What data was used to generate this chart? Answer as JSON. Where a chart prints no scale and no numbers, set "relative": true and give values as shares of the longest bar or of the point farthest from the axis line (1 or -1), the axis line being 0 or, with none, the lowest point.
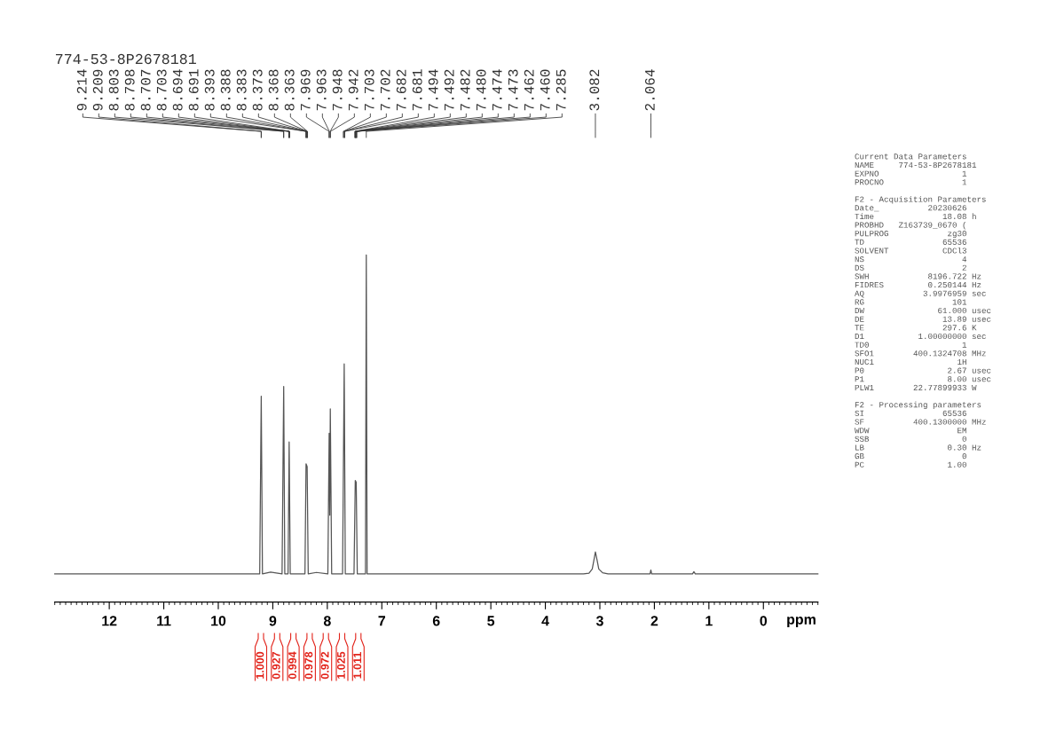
{
  "chart_data": [
    {
      "type": "line",
      "title": "774-53-8P2678181",
      "xlabel": "ppm",
      "relative": true,
      "x": [
        13.0,
        9.3,
        9.24,
        9.212,
        9.19,
        9.04,
        8.83,
        8.8,
        8.78,
        8.72,
        8.7,
        8.68,
        8.41,
        8.39,
        8.37,
        8.35,
        8.2,
        7.99,
        7.966,
        7.955,
        7.945,
        7.92,
        7.72,
        7.69,
        7.67,
        7.51,
        7.487,
        7.47,
        7.45,
        7.3,
        7.285,
        7.27,
        3.3,
        3.2,
        3.14,
        3.11,
        3.082,
        3.05,
        3.02,
        2.95,
        2.85,
        2.08,
        2.064,
        2.05,
        1.3,
        1.275,
        1.25,
        -1.0
      ],
      "series": [
        {
          "color": "#555555",
          "values": [
            0.081,
            0.081,
            0.081,
            0.593,
            0.081,
            0.086,
            0.081,
            0.621,
            0.081,
            0.081,
            0.461,
            0.081,
            0.081,
            0.398,
            0.39,
            0.081,
            0.085,
            0.081,
            0.486,
            0.25,
            0.556,
            0.081,
            0.081,
            0.686,
            0.081,
            0.081,
            0.35,
            0.345,
            0.081,
            0.081,
            1.0,
            0.081,
            0.081,
            0.083,
            0.095,
            0.12,
            0.144,
            0.12,
            0.095,
            0.084,
            0.081,
            0.081,
            0.092,
            0.081,
            0.081,
            0.087,
            0.081,
            0.081
          ]
        }
      ],
      "xlim": [
        13,
        -1
      ],
      "xticks": [
        {
          "value": 13,
          "label": null
        },
        {
          "value": 12.9,
          "label": null
        },
        {
          "value": 12.8,
          "label": null
        },
        {
          "value": 12.7,
          "label": null
        },
        {
          "value": 12.6,
          "label": null
        },
        {
          "value": 12.5,
          "label": null
        },
        {
          "value": 12.4,
          "label": null
        },
        {
          "value": 12.3,
          "label": null
        },
        {
          "value": 12.2,
          "label": null
        },
        {
          "value": 12.1,
          "label": null
        },
        12,
        {
          "value": 11.9,
          "label": null
        },
        {
          "value": 11.8,
          "label": null
        },
        {
          "value": 11.7,
          "label": null
        },
        {
          "value": 11.6,
          "label": null
        },
        {
          "value": 11.5,
          "label": null
        },
        {
          "value": 11.4,
          "label": null
        },
        {
          "value": 11.3,
          "label": null
        },
        {
          "value": 11.2,
          "label": null
        },
        {
          "value": 11.1,
          "label": null
        },
        11,
        {
          "value": 10.9,
          "label": null
        },
        {
          "value": 10.8,
          "label": null
        },
        {
          "value": 10.7,
          "label": null
        },
        {
          "value": 10.6,
          "label": null
        },
        {
          "value": 10.5,
          "label": null
        },
        {
          "value": 10.4,
          "label": null
        },
        {
          "value": 10.3,
          "label": null
        },
        {
          "value": 10.2,
          "label": null
        },
        {
          "value": 10.1,
          "label": null
        },
        10,
        {
          "value": 9.9,
          "label": null
        },
        {
          "value": 9.8,
          "label": null
        },
        {
          "value": 9.7,
          "label": null
        },
        {
          "value": 9.6,
          "label": null
        },
        {
          "value": 9.5,
          "label": null
        },
        {
          "value": 9.4,
          "label": null
        },
        {
          "value": 9.3,
          "label": null
        },
        {
          "value": 9.2,
          "label": null
        },
        {
          "value": 9.1,
          "label": null
        },
        9,
        {
          "value": 8.9,
          "label": null
        },
        {
          "value": 8.8,
          "label": null
        },
        {
          "value": 8.7,
          "label": null
        },
        {
          "value": 8.6,
          "label": null
        },
        {
          "value": 8.5,
          "label": null
        },
        {
          "value": 8.4,
          "label": null
        },
        {
          "value": 8.3,
          "label": null
        },
        {
          "value": 8.2,
          "label": null
        },
        {
          "value": 8.1,
          "label": null
        },
        8,
        {
          "value": 7.9,
          "label": null
        },
        {
          "value": 7.8,
          "label": null
        },
        {
          "value": 7.7,
          "label": null
        },
        {
          "value": 7.6,
          "label": null
        },
        {
          "value": 7.5,
          "label": null
        },
        {
          "value": 7.4,
          "label": null
        },
        {
          "value": 7.3,
          "label": null
        },
        {
          "value": 7.2,
          "label": null
        },
        {
          "value": 7.1,
          "label": null
        },
        7,
        {
          "value": 6.9,
          "label": null
        },
        {
          "value": 6.8,
          "label": null
        },
        {
          "value": 6.7,
          "label": null
        },
        {
          "value": 6.6,
          "label": null
        },
        {
          "value": 6.5,
          "label": null
        },
        {
          "value": 6.4,
          "label": null
        },
        {
          "value": 6.3,
          "label": null
        },
        {
          "value": 6.2,
          "label": null
        },
        {
          "value": 6.1,
          "label": null
        },
        6,
        {
          "value": 5.9,
          "label": null
        },
        {
          "value": 5.8,
          "label": null
        },
        {
          "value": 5.7,
          "label": null
        },
        {
          "value": 5.6,
          "label": null
        },
        {
          "value": 5.5,
          "label": null
        },
        {
          "value": 5.4,
          "label": null
        },
        {
          "value": 5.3,
          "label": null
        },
        {
          "value": 5.2,
          "label": null
        },
        {
          "value": 5.1,
          "label": null
        },
        5,
        {
          "value": 4.9,
          "label": null
        },
        {
          "value": 4.8,
          "label": null
        },
        {
          "value": 4.7,
          "label": null
        },
        {
          "value": 4.6,
          "label": null
        },
        {
          "value": 4.5,
          "label": null
        },
        {
          "value": 4.4,
          "label": null
        },
        {
          "value": 4.3,
          "label": null
        },
        {
          "value": 4.2,
          "label": null
        },
        {
          "value": 4.1,
          "label": null
        },
        4,
        {
          "value": 3.9,
          "label": null
        },
        {
          "value": 3.8,
          "label": null
        },
        {
          "value": 3.7,
          "label": null
        },
        {
          "value": 3.6,
          "label": null
        },
        {
          "value": 3.5,
          "label": null
        },
        {
          "value": 3.4,
          "label": null
        },
        {
          "value": 3.3,
          "label": null
        },
        {
          "value": 3.2,
          "label": null
        },
        {
          "value": 3.1,
          "label": null
        },
        3,
        {
          "value": 2.9,
          "label": null
        },
        {
          "value": 2.8,
          "label": null
        },
        {
          "value": 2.7,
          "label": null
        },
        {
          "value": 2.6,
          "label": null
        },
        {
          "value": 2.5,
          "label": null
        },
        {
          "value": 2.4,
          "label": null
        },
        {
          "value": 2.3,
          "label": null
        },
        {
          "value": 2.2,
          "label": null
        },
        {
          "value": 2.1,
          "label": null
        },
        2,
        {
          "value": 1.9,
          "label": null
        },
        {
          "value": 1.8,
          "label": null
        },
        {
          "value": 1.7,
          "label": null
        },
        {
          "value": 1.6,
          "label": null
        },
        {
          "value": 1.5,
          "label": null
        },
        {
          "value": 1.4,
          "label": null
        },
        {
          "value": 1.3,
          "label": null
        },
        {
          "value": 1.2,
          "label": null
        },
        {
          "value": 1.1,
          "label": null
        },
        1,
        {
          "value": 0.9,
          "label": null
        },
        {
          "value": 0.8,
          "label": null
        },
        {
          "value": 0.7,
          "label": null
        },
        {
          "value": 0.6,
          "label": null
        },
        {
          "value": 0.5,
          "label": null
        },
        {
          "value": 0.4,
          "label": null
        },
        {
          "value": 0.3,
          "label": null
        },
        {
          "value": 0.2,
          "label": null
        },
        {
          "value": 0.1,
          "label": null
        },
        0,
        {
          "value": -0.1,
          "label": null
        },
        {
          "value": -0.2,
          "label": null
        },
        {
          "value": -0.3,
          "label": null
        },
        {
          "value": -0.4,
          "label": null
        },
        {
          "value": -0.5,
          "label": null
        },
        {
          "value": -0.6,
          "label": null
        },
        {
          "value": -0.7,
          "label": null
        },
        {
          "value": -0.8,
          "label": null
        },
        {
          "value": -0.9,
          "label": null
        },
        {
          "value": -1,
          "label": null
        }
      ],
      "annotations": [
        {
          "text": "9.214",
          "x": 9.214
        },
        {
          "text": "9.209",
          "x": 9.209
        },
        {
          "text": "8.803",
          "x": 8.803
        },
        {
          "text": "8.798",
          "x": 8.798
        },
        {
          "text": "8.707",
          "x": 8.707
        },
        {
          "text": "8.703",
          "x": 8.703
        },
        {
          "text": "8.694",
          "x": 8.694
        },
        {
          "text": "8.691",
          "x": 8.691
        },
        {
          "text": "8.393",
          "x": 8.393
        },
        {
          "text": "8.388",
          "x": 8.388
        },
        {
          "text": "8.383",
          "x": 8.383
        },
        {
          "text": "8.373",
          "x": 8.373
        },
        {
          "text": "8.368",
          "x": 8.368
        },
        {
          "text": "8.363",
          "x": 8.363
        },
        {
          "text": "7.969",
          "x": 7.969
        },
        {
          "text": "7.963",
          "x": 7.963
        },
        {
          "text": "7.948",
          "x": 7.948
        },
        {
          "text": "7.942",
          "x": 7.942
        },
        {
          "text": "7.703",
          "x": 7.703
        },
        {
          "text": "7.702",
          "x": 7.702
        },
        {
          "text": "7.682",
          "x": 7.682
        },
        {
          "text": "7.681",
          "x": 7.681
        },
        {
          "text": "7.494",
          "x": 7.494
        },
        {
          "text": "7.492",
          "x": 7.492
        },
        {
          "text": "7.482",
          "x": 7.482
        },
        {
          "text": "7.480",
          "x": 7.48
        },
        {
          "text": "7.474",
          "x": 7.474
        },
        {
          "text": "7.473",
          "x": 7.473
        },
        {
          "text": "7.462",
          "x": 7.462
        },
        {
          "text": "7.460",
          "x": 7.46
        },
        {
          "text": "7.285",
          "x": 7.285
        },
        {
          "text": "3.082",
          "x": 3.082
        },
        {
          "text": "2.064",
          "x": 2.064
        },
        "1.000",
        "0.927",
        "0.994",
        "0.978",
        "0.972",
        "1.025",
        "1.011"
      ]
    },
    {
      "type": "other",
      "annotations": [
        "Current Data Parameters",
        "NAME\t774-53-8P2678181",
        "EXPNO\t1",
        "PROCNO\t1",
        "F2 - Acquisition Parameters",
        "Date_\t20230626",
        "Time\t18.08\th",
        "PROBHD\tZ163739_0670 (",
        "PULPROG\tzg30",
        "TD\t65536",
        "SOLVENT\tCDCl3",
        "NS\t4",
        "DS\t2",
        "SWH\t8196.722\tHz",
        "FIDRES\t0.250144\tHz",
        "AQ\t3.9976959\tsec",
        "RG\t101",
        "DW\t61.000\tusec",
        "DE\t13.89\tusec",
        "TE\t297.6\tK",
        "D1\t1.00000000\tsec",
        "TD0\t1",
        "SFO1\t400.1324708\tMHz",
        "NUC1\t1H",
        "P0\t2.67\tusec",
        "P1\t8.00\tusec",
        "PLW1\t22.77899933\tW",
        "F2 - Processing parameters",
        "SI\t65536",
        "SF\t400.1300000\tMHz",
        "WDW\tEM",
        "SSB\t0",
        "LB\t0.30\tHz",
        "GB\t0",
        "PC\t1.00"
      ]
    }
  ]
}
